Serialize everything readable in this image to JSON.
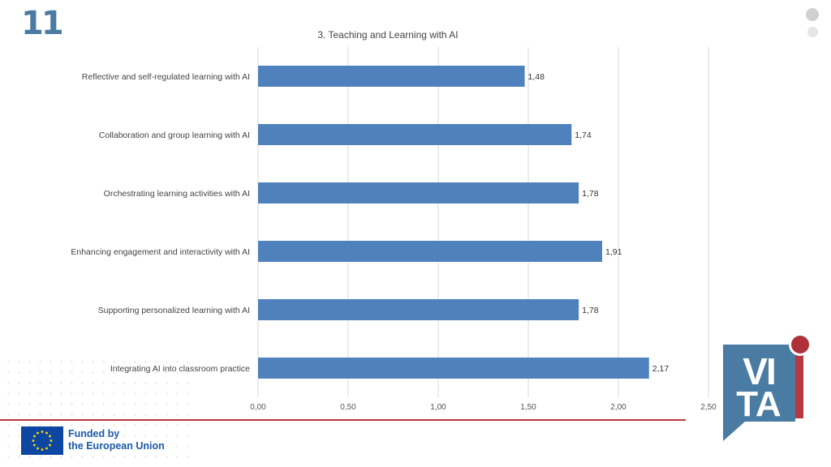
{
  "page_number": "11",
  "footer": {
    "funded_line1": "Funded by",
    "funded_line2": "the European Union"
  },
  "logo_text": "VITA",
  "colors": {
    "bar": "#4f81bd",
    "accent_red": "#b8383f",
    "brand_blue": "#4a7ba3"
  },
  "chart_data": {
    "type": "bar",
    "orientation": "horizontal",
    "title": "3. Teaching and Learning with AI",
    "categories": [
      "Reflective and self-regulated learning with AI",
      "Collaboration and group learning with AI",
      "Orchestrating learning activities with AI",
      "Enhancing engagement and interactivity with AI",
      "Supporting personalized learning with AI",
      "Integrating AI into classroom practice"
    ],
    "values": [
      1.48,
      1.74,
      1.78,
      1.91,
      1.78,
      2.17
    ],
    "value_labels": [
      "1,48",
      "1,74",
      "1,78",
      "1,91",
      "1,78",
      "2,17"
    ],
    "xlim": [
      0,
      2.5
    ],
    "xticks": [
      "0,00",
      "0,50",
      "1,00",
      "1,50",
      "2,00",
      "2,50"
    ],
    "grid": true,
    "legend": "none"
  }
}
